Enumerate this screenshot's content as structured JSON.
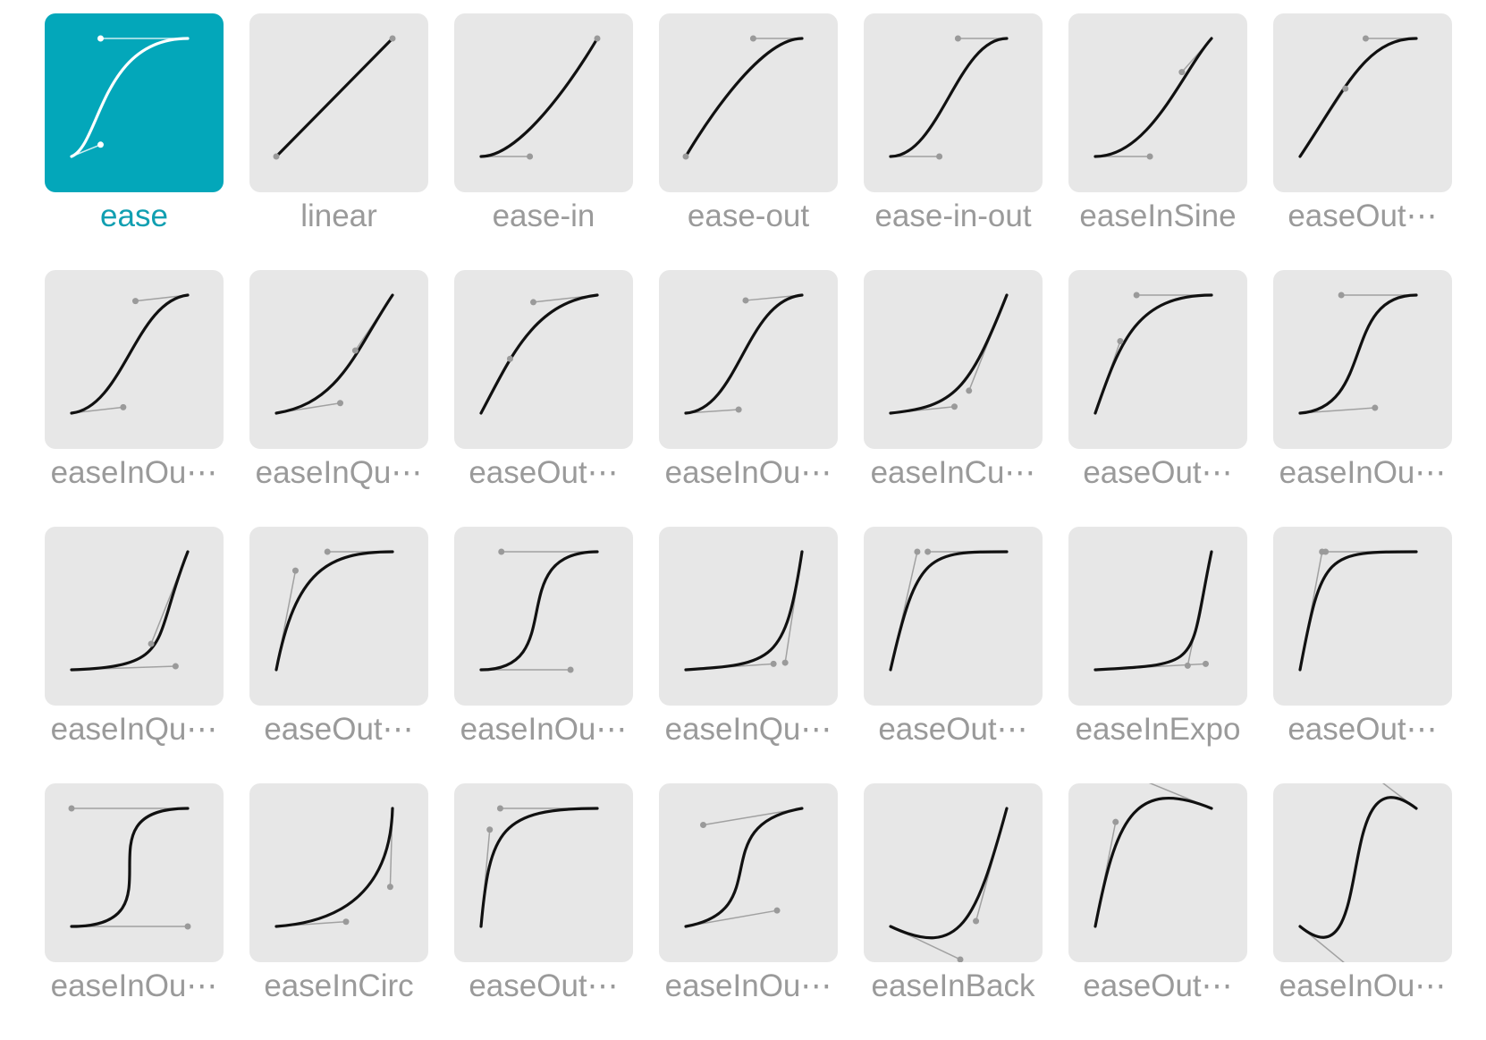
{
  "easings": [
    {
      "label": "ease",
      "p1": [
        0.25,
        0.1
      ],
      "p2": [
        0.25,
        1.0
      ],
      "selected": true
    },
    {
      "label": "linear",
      "p1": [
        0.0,
        0.0
      ],
      "p2": [
        1.0,
        1.0
      ]
    },
    {
      "label": "ease-in",
      "p1": [
        0.42,
        0.0
      ],
      "p2": [
        1.0,
        1.0
      ]
    },
    {
      "label": "ease-out",
      "p1": [
        0.0,
        0.0
      ],
      "p2": [
        0.58,
        1.0
      ]
    },
    {
      "label": "ease-in-out",
      "p1": [
        0.42,
        0.0
      ],
      "p2": [
        0.58,
        1.0
      ]
    },
    {
      "label": "easeInSine",
      "p1": [
        0.47,
        0.0
      ],
      "p2": [
        0.745,
        0.715
      ]
    },
    {
      "label": "easeOut⋯",
      "p1": [
        0.39,
        0.575
      ],
      "p2": [
        0.565,
        1.0
      ]
    },
    {
      "label": "easeInOu⋯",
      "p1": [
        0.445,
        0.05
      ],
      "p2": [
        0.55,
        0.95
      ]
    },
    {
      "label": "easeInQu⋯",
      "p1": [
        0.55,
        0.085
      ],
      "p2": [
        0.68,
        0.53
      ]
    },
    {
      "label": "easeOut⋯",
      "p1": [
        0.25,
        0.46
      ],
      "p2": [
        0.45,
        0.94
      ]
    },
    {
      "label": "easeInOu⋯",
      "p1": [
        0.455,
        0.03
      ],
      "p2": [
        0.515,
        0.955
      ]
    },
    {
      "label": "easeInCu⋯",
      "p1": [
        0.55,
        0.055
      ],
      "p2": [
        0.675,
        0.19
      ]
    },
    {
      "label": "easeOut⋯",
      "p1": [
        0.215,
        0.61
      ],
      "p2": [
        0.355,
        1.0
      ]
    },
    {
      "label": "easeInOu⋯",
      "p1": [
        0.645,
        0.045
      ],
      "p2": [
        0.355,
        1.0
      ]
    },
    {
      "label": "easeInQu⋯",
      "p1": [
        0.895,
        0.03
      ],
      "p2": [
        0.685,
        0.22
      ]
    },
    {
      "label": "easeOut⋯",
      "p1": [
        0.165,
        0.84
      ],
      "p2": [
        0.44,
        1.0
      ]
    },
    {
      "label": "easeInOu⋯",
      "p1": [
        0.77,
        0.0
      ],
      "p2": [
        0.175,
        1.0
      ]
    },
    {
      "label": "easeInQu⋯",
      "p1": [
        0.755,
        0.05
      ],
      "p2": [
        0.855,
        0.06
      ]
    },
    {
      "label": "easeOut⋯",
      "p1": [
        0.23,
        1.0
      ],
      "p2": [
        0.32,
        1.0
      ]
    },
    {
      "label": "easeInExpo",
      "p1": [
        0.95,
        0.05
      ],
      "p2": [
        0.795,
        0.035
      ]
    },
    {
      "label": "easeOut⋯",
      "p1": [
        0.19,
        1.0
      ],
      "p2": [
        0.22,
        1.0
      ]
    },
    {
      "label": "easeInOu⋯",
      "p1": [
        1.0,
        0.0
      ],
      "p2": [
        0.0,
        1.0
      ]
    },
    {
      "label": "easeInCirc",
      "p1": [
        0.6,
        0.04
      ],
      "p2": [
        0.98,
        0.335
      ]
    },
    {
      "label": "easeOut⋯",
      "p1": [
        0.075,
        0.82
      ],
      "p2": [
        0.165,
        1.0
      ]
    },
    {
      "label": "easeInOu⋯",
      "p1": [
        0.785,
        0.135
      ],
      "p2": [
        0.15,
        0.86
      ]
    },
    {
      "label": "easeInBack",
      "p1": [
        0.6,
        -0.28
      ],
      "p2": [
        0.735,
        0.045
      ]
    },
    {
      "label": "easeOut⋯",
      "p1": [
        0.175,
        0.885
      ],
      "p2": [
        0.32,
        1.275
      ]
    },
    {
      "label": "easeInOu⋯",
      "p1": [
        0.68,
        -0.55
      ],
      "p2": [
        0.265,
        1.55
      ]
    }
  ],
  "colors": {
    "tile_bg": "#e7e7e7",
    "selected_bg": "#03a7ba",
    "curve": "#111111",
    "selected_curve": "#ffffff",
    "handle": "#9a9a9a",
    "label": "#9a9a9a",
    "selected_label": "#119fb1"
  }
}
